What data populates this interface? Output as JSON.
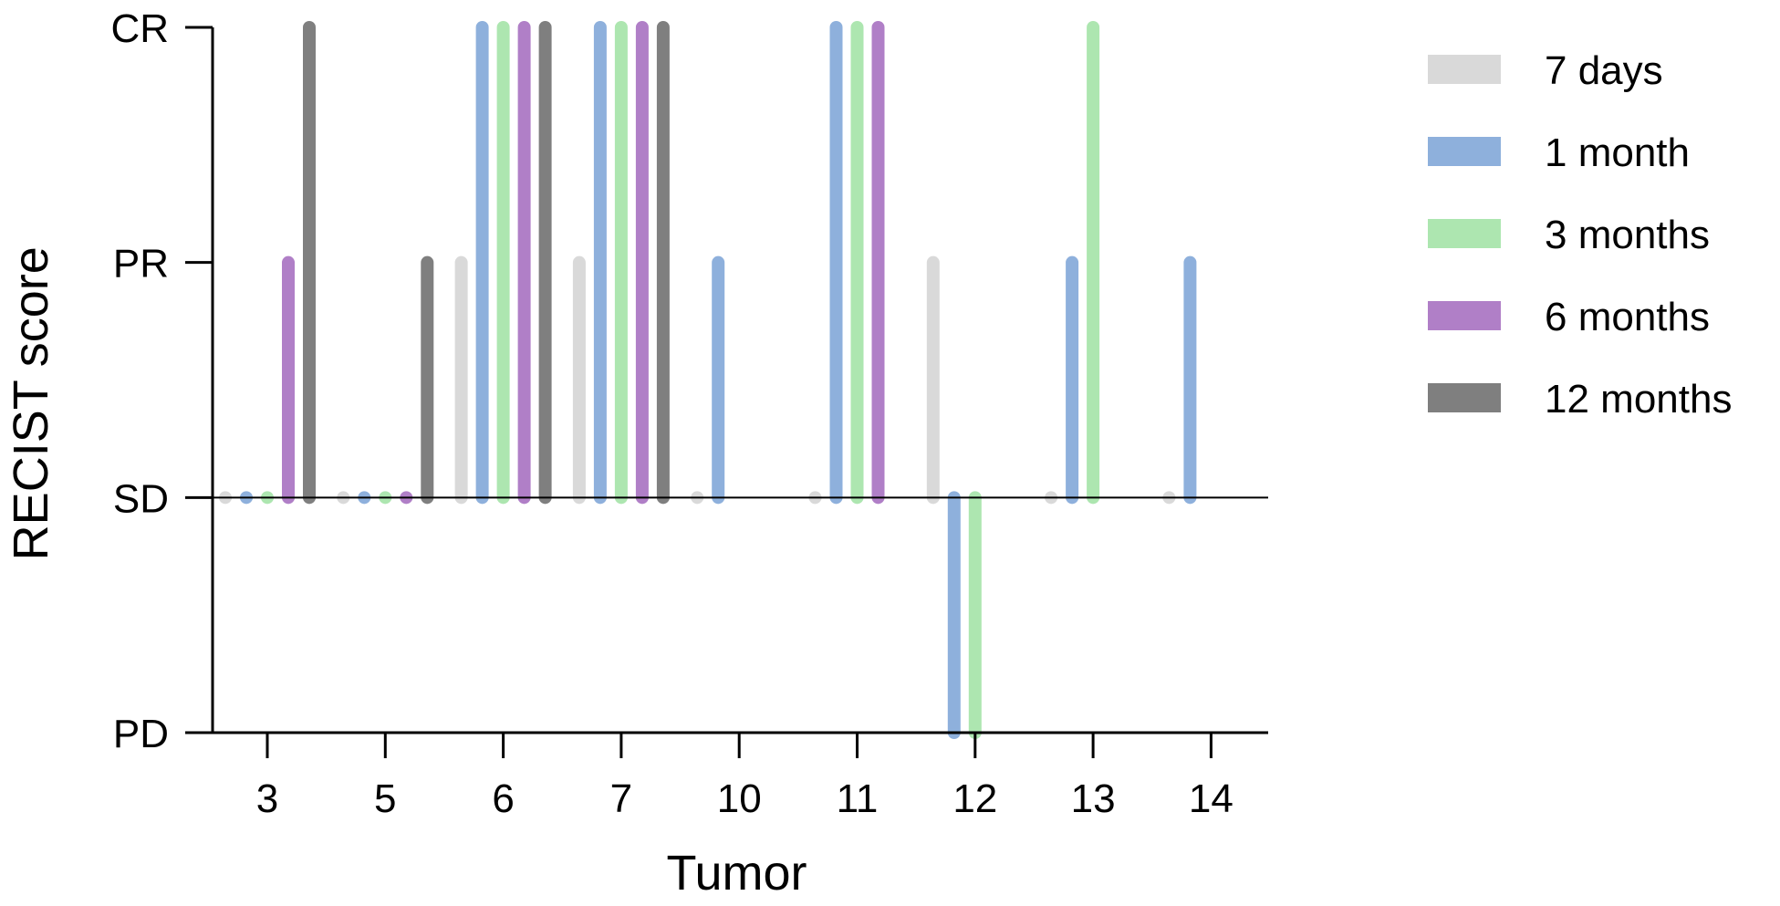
{
  "chart_data": {
    "type": "bar",
    "xlabel": "Tumor",
    "ylabel": "RECIST score",
    "y_levels": [
      "PD",
      "SD",
      "PR",
      "CR"
    ],
    "y_values": {
      "PD": -1,
      "SD": 0,
      "PR": 1,
      "CR": 2
    },
    "ylim": [
      -1,
      2
    ],
    "baseline": 0,
    "categories": [
      "3",
      "5",
      "6",
      "7",
      "10",
      "11",
      "12",
      "13",
      "14"
    ],
    "series": [
      {
        "name": "7 days",
        "color": "#d9d9d9",
        "values": [
          0,
          0,
          1,
          1,
          0,
          0,
          1,
          0,
          0
        ]
      },
      {
        "name": "1 month",
        "color": "#8eb0dc",
        "values": [
          0,
          0,
          2,
          2,
          1,
          2,
          -1,
          1,
          1
        ]
      },
      {
        "name": "3 months",
        "color": "#ade6b0",
        "values": [
          0,
          0,
          2,
          2,
          null,
          2,
          -1,
          2,
          null
        ]
      },
      {
        "name": "6 months",
        "color": "#b07fc7",
        "values": [
          1,
          0,
          2,
          2,
          null,
          2,
          null,
          null,
          null
        ]
      },
      {
        "name": "12 months",
        "color": "#7f7f7f",
        "values": [
          2,
          1,
          2,
          2,
          null,
          null,
          null,
          null,
          null
        ]
      }
    ],
    "grid": false,
    "legend_position": "right"
  }
}
